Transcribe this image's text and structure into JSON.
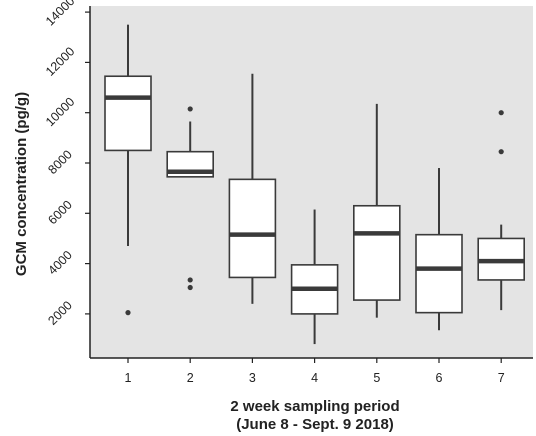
{
  "chart_data": {
    "type": "boxplot",
    "title": "",
    "xlabel": [
      "2 week sampling period",
      "(June 8 - Sept. 9 2018)"
    ],
    "ylabel": "GCM concentration (pg/g)",
    "ylim": [
      0,
      14000
    ],
    "yticks": [
      2000,
      4000,
      6000,
      8000,
      10000,
      12000,
      14000
    ],
    "grid": false,
    "legend": "none",
    "colors": {
      "panel": "#e4e4e4",
      "box_fill": "#ffffff",
      "stroke": "#3a3a3a",
      "text": "#222222"
    },
    "categories": [
      "1",
      "2",
      "3",
      "4",
      "5",
      "6",
      "7"
    ],
    "boxes": [
      {
        "x": "1",
        "whisker_low": 4700,
        "q1": 8500,
        "median": 10600,
        "q3": 11450,
        "whisker_high": 13500,
        "outliers": [
          2050
        ]
      },
      {
        "x": "2",
        "whisker_low": 7450,
        "q1": 7450,
        "median": 7650,
        "q3": 8450,
        "whisker_high": 9650,
        "outliers": [
          10150,
          3350,
          3050
        ]
      },
      {
        "x": "3",
        "whisker_low": 2400,
        "q1": 3450,
        "median": 5150,
        "q3": 7350,
        "whisker_high": 11550,
        "outliers": []
      },
      {
        "x": "4",
        "whisker_low": 800,
        "q1": 2000,
        "median": 3000,
        "q3": 3950,
        "whisker_high": 6150,
        "outliers": []
      },
      {
        "x": "5",
        "whisker_low": 1850,
        "q1": 2550,
        "median": 5200,
        "q3": 6300,
        "whisker_high": 10350,
        "outliers": []
      },
      {
        "x": "6",
        "whisker_low": 1350,
        "q1": 2050,
        "median": 3800,
        "q3": 5150,
        "whisker_high": 7800,
        "outliers": []
      },
      {
        "x": "7",
        "whisker_low": 2150,
        "q1": 3350,
        "median": 4100,
        "q3": 5000,
        "whisker_high": 5550,
        "outliers": [
          10000,
          8450
        ]
      }
    ]
  }
}
